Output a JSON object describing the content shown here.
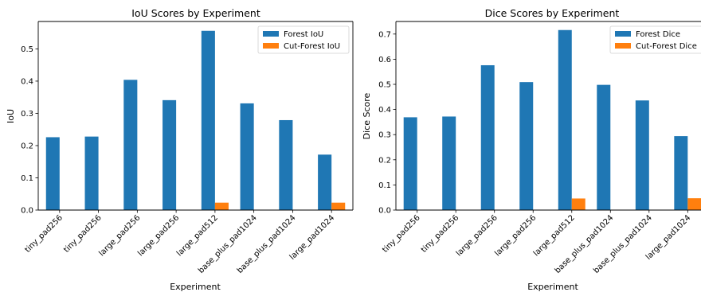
{
  "chart_data": [
    {
      "type": "bar",
      "title": "IoU Scores by Experiment",
      "xlabel": "Experiment",
      "ylabel": "IoU",
      "ylim": [
        0,
        0.585
      ],
      "yticks": [
        "0.0",
        "0.1",
        "0.2",
        "0.3",
        "0.4",
        "0.5"
      ],
      "legend_position": "top-right",
      "categories": [
        "tiny_pad256",
        "tiny_pad256",
        "large_pad256",
        "large_pad256",
        "large_pad512",
        "base_plus_pad1024",
        "base_plus_pad1024",
        "large_pad1024"
      ],
      "series": [
        {
          "name": "Forest IoU",
          "color": "#1f77b4",
          "values": [
            0.226,
            0.228,
            0.404,
            0.341,
            0.556,
            0.331,
            0.279,
            0.172
          ]
        },
        {
          "name": "Cut-Forest IoU",
          "color": "#ff7f0e",
          "values": [
            0,
            0,
            0,
            0,
            0.023,
            0,
            0,
            0.023
          ]
        }
      ]
    },
    {
      "type": "bar",
      "title": "Dice Scores by Experiment",
      "xlabel": "Experiment",
      "ylabel": "Dice Score",
      "ylim": [
        0,
        0.75
      ],
      "yticks": [
        "0.0",
        "0.1",
        "0.2",
        "0.3",
        "0.4",
        "0.5",
        "0.6",
        "0.7"
      ],
      "legend_position": "top-right",
      "categories": [
        "tiny_pad256",
        "tiny_pad256",
        "large_pad256",
        "large_pad256",
        "large_pad512",
        "base_plus_pad1024",
        "base_plus_pad1024",
        "large_pad1024"
      ],
      "series": [
        {
          "name": "Forest Dice",
          "color": "#1f77b4",
          "values": [
            0.369,
            0.372,
            0.576,
            0.509,
            0.716,
            0.498,
            0.436,
            0.294
          ]
        },
        {
          "name": "Cut-Forest Dice",
          "color": "#ff7f0e",
          "values": [
            0,
            0,
            0,
            0,
            0.046,
            0,
            0,
            0.047
          ]
        }
      ]
    }
  ]
}
